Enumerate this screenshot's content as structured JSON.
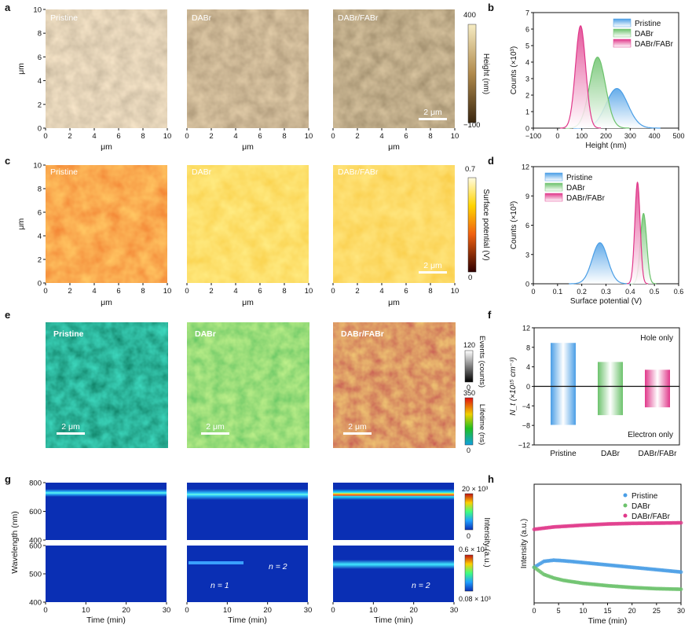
{
  "panel_letters": [
    "a",
    "b",
    "c",
    "d",
    "e",
    "f",
    "g",
    "h"
  ],
  "colors": {
    "pristine": "#4a9ee6",
    "dabr": "#6cc26c",
    "dabr_fabr": "#e0388a"
  },
  "chart_data": [
    {
      "id": "a",
      "type": "heatmap",
      "title": "AFM height maps",
      "maps": [
        "Pristine",
        "DABr",
        "DABr/FABr"
      ],
      "xlabel": "μm",
      "ylabel": "μm",
      "xticks": [
        "0",
        "2",
        "4",
        "6",
        "8",
        "10"
      ],
      "yticks": [
        "0",
        "2",
        "4",
        "6",
        "8",
        "10"
      ],
      "scale_bar": "2 μm",
      "colorbar": {
        "label": "Height (nm)",
        "max": "400",
        "min": "−100"
      }
    },
    {
      "id": "b",
      "type": "area",
      "xlabel": "Height (nm)",
      "ylabel": "Counts (×10³)",
      "xlim": [
        -100,
        500
      ],
      "ylim": [
        0,
        7
      ],
      "xticks": [
        "−100",
        "0",
        "100",
        "200",
        "300",
        "400",
        "500"
      ],
      "yticks": [
        "0",
        "1",
        "2",
        "3",
        "4",
        "5",
        "6",
        "7"
      ],
      "legend": [
        "Pristine",
        "DABr",
        "DABr/FABr"
      ],
      "series": [
        {
          "name": "Pristine",
          "center": 245,
          "sigma": 45,
          "peak": 2.4
        },
        {
          "name": "DABr",
          "center": 165,
          "sigma": 33,
          "peak": 4.3
        },
        {
          "name": "DABr/FABr",
          "center": 95,
          "sigma": 21,
          "peak": 6.2
        }
      ]
    },
    {
      "id": "c",
      "type": "heatmap",
      "title": "Surface potential maps",
      "maps": [
        "Pristine",
        "DABr",
        "DABr/FABr"
      ],
      "xlabel": "μm",
      "ylabel": "μm",
      "xticks": [
        "0",
        "2",
        "4",
        "6",
        "8",
        "10"
      ],
      "yticks": [
        "0",
        "2",
        "4",
        "6",
        "8",
        "10"
      ],
      "scale_bar": "2 μm",
      "colorbar": {
        "label": "Surface potential (V)",
        "max": "0.7",
        "min": "0"
      }
    },
    {
      "id": "d",
      "type": "area",
      "xlabel": "Surface potential (V)",
      "ylabel": "Counts (×10³)",
      "xlim": [
        0,
        0.6
      ],
      "ylim": [
        0,
        12
      ],
      "xticks": [
        "0",
        "0.1",
        "0.2",
        "0.3",
        "0.4",
        "0.5",
        "0.6"
      ],
      "yticks": [
        "0",
        "3",
        "6",
        "9",
        "12"
      ],
      "legend": [
        "Pristine",
        "DABr",
        "DABr/FABr"
      ],
      "series": [
        {
          "name": "Pristine",
          "center": 0.275,
          "sigma": 0.032,
          "peak": 4.2
        },
        {
          "name": "DABr",
          "center": 0.455,
          "sigma": 0.013,
          "peak": 7.2
        },
        {
          "name": "DABr/FABr",
          "center": 0.43,
          "sigma": 0.011,
          "peak": 10.4
        }
      ]
    },
    {
      "id": "e",
      "type": "heatmap",
      "title": "FLIM maps",
      "maps": [
        "Pristine",
        "DABr",
        "DABr/FABr"
      ],
      "scale_bar": "2 μm",
      "colorbars": [
        {
          "label": "Events (counts)",
          "max": "120",
          "min": "0"
        },
        {
          "label": "Lifetime (ns)",
          "max": "350",
          "min": "0"
        }
      ]
    },
    {
      "id": "f",
      "type": "bar",
      "categories": [
        "Pristine",
        "DABr",
        "DABr/FABr"
      ],
      "ylabel": "N_t (×10¹⁵ cm⁻³)",
      "ylim": [
        -12,
        12
      ],
      "yticks": [
        "−12",
        "−8",
        "−4",
        "0",
        "4",
        "8",
        "12"
      ],
      "series": [
        {
          "name": "Hole only",
          "values": [
            8.9,
            5.0,
            3.4
          ]
        },
        {
          "name": "Electron only",
          "values": [
            -7.9,
            -5.9,
            -4.3
          ]
        }
      ]
    },
    {
      "id": "g",
      "type": "heatmap",
      "maps": [
        "Pristine",
        "DABr",
        "DABr/FABr"
      ],
      "xlabel": "Time (min)",
      "ylabel": "Wavelength (nm)",
      "xticks": [
        "0",
        "10",
        "20",
        "30"
      ],
      "yticks_top": [
        "400",
        "600",
        "800"
      ],
      "yticks_bottom": [
        "400",
        "500",
        "600"
      ],
      "annotations": [
        "n = 1",
        "n = 2",
        "n = 2"
      ],
      "colorbar_label": "Intensity (a.u.)",
      "colorbar_top": {
        "max": "20 × 10³",
        "min": "0"
      },
      "colorbar_bottom": {
        "max": "0.6 × 10³",
        "min": "0.08 × 10³"
      }
    },
    {
      "id": "h",
      "type": "scatter",
      "xlabel": "Time (min)",
      "ylabel": "Intensity (a.u.)",
      "xlim": [
        0,
        30
      ],
      "xticks": [
        "0",
        "5",
        "10",
        "15",
        "20",
        "25",
        "30"
      ],
      "legend": [
        "Pristine",
        "DABr",
        "DABr/FABr"
      ],
      "series": [
        {
          "name": "Pristine",
          "x": [
            0,
            2,
            4,
            6,
            10,
            15,
            20,
            25,
            30
          ],
          "y": [
            0.3,
            0.35,
            0.36,
            0.355,
            0.34,
            0.32,
            0.3,
            0.28,
            0.26
          ]
        },
        {
          "name": "DABr",
          "x": [
            0,
            2,
            4,
            6,
            10,
            15,
            20,
            25,
            30
          ],
          "y": [
            0.3,
            0.24,
            0.21,
            0.19,
            0.165,
            0.145,
            0.13,
            0.12,
            0.115
          ]
        },
        {
          "name": "DABr/FABr",
          "x": [
            0,
            2,
            4,
            6,
            10,
            15,
            20,
            25,
            30
          ],
          "y": [
            0.62,
            0.63,
            0.64,
            0.645,
            0.655,
            0.665,
            0.67,
            0.672,
            0.675
          ]
        }
      ]
    }
  ]
}
